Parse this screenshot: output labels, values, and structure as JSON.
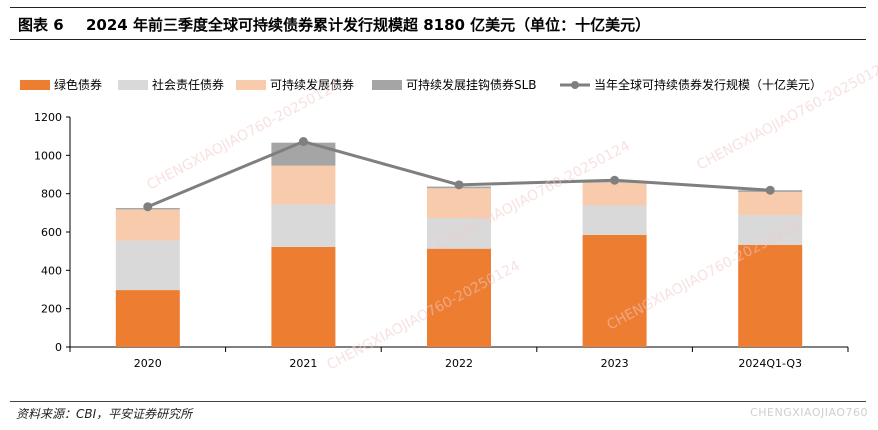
{
  "figure": {
    "label": "图表 6",
    "title": "2024 年前三季度全球可持续债券累计发行规模超 8180 亿美元（单位：十亿美元）"
  },
  "footer": {
    "source": "资料来源：CBI，平安证券研究所",
    "watermark": "CHENGXIAOJIAO760"
  },
  "chart_data": {
    "type": "bar",
    "stacked": true,
    "categories": [
      "2020",
      "2021",
      "2022",
      "2023",
      "2024Q1-Q3"
    ],
    "series": [
      {
        "name": "绿色债券",
        "color": "#ED7D31",
        "values": [
          297,
          522,
          513,
          585,
          533
        ]
      },
      {
        "name": "社会责任债券",
        "color": "#D9D9D9",
        "values": [
          258,
          222,
          160,
          153,
          156
        ]
      },
      {
        "name": "可持续发展债券",
        "color": "#F8CBAD",
        "values": [
          163,
          202,
          155,
          119,
          120
        ]
      },
      {
        "name": "可持续发展挂钩债券SLB",
        "color": "#A5A5A5",
        "values": [
          7,
          120,
          9,
          3,
          9
        ]
      }
    ],
    "line": {
      "name": "当年全球可持续债券发行规模（十亿美元）",
      "color": "#7F7F7F",
      "values": [
        732,
        1072,
        846,
        870,
        818
      ]
    },
    "ylim": [
      0,
      1200
    ],
    "yticks": [
      0,
      200,
      400,
      600,
      800,
      1000,
      1200
    ],
    "xlabel": "",
    "ylabel": "",
    "legend_position": "top",
    "grid": false
  }
}
